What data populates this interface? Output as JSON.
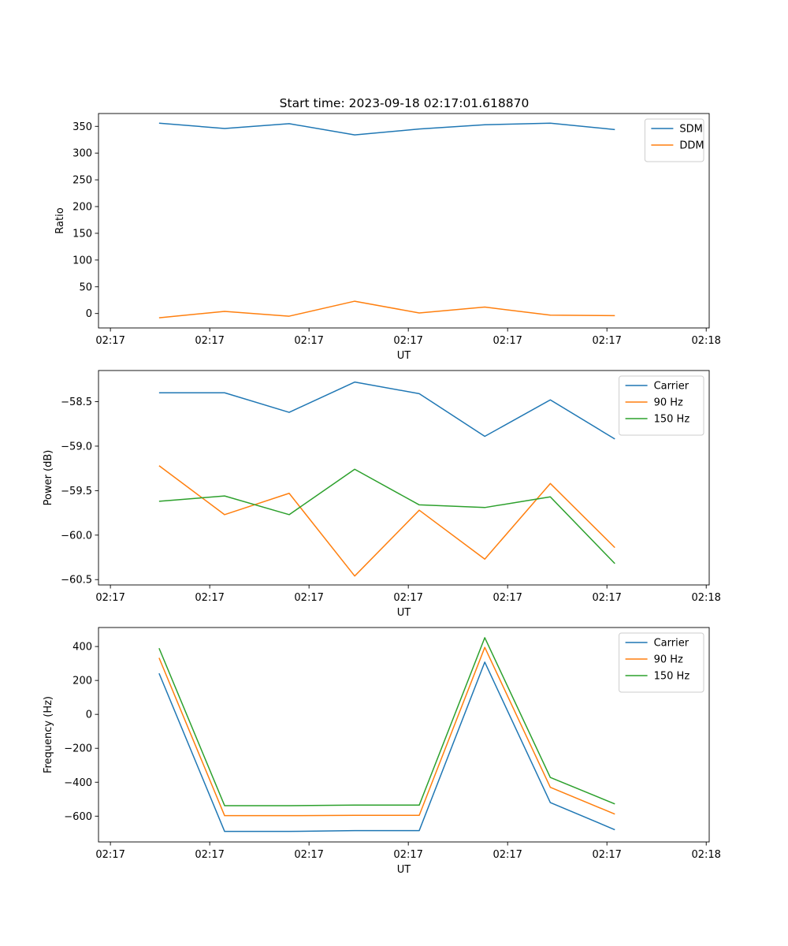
{
  "figure": {
    "title": "Start time: 2023-09-18 02:17:01.618870"
  },
  "chart_data": [
    {
      "type": "line",
      "title": "Start time: 2023-09-18 02:17:01.618870",
      "xlabel": "UT",
      "ylabel": "Ratio",
      "x_tick_labels": [
        "02:17",
        "02:17",
        "02:17",
        "02:17",
        "02:17",
        "02:17",
        "02:18"
      ],
      "x_tick_values": [
        0,
        1,
        2,
        3,
        4,
        5,
        6
      ],
      "xlim": [
        -0.12,
        6.03
      ],
      "x": [
        0.49,
        1.15,
        1.8,
        2.46,
        3.11,
        3.77,
        4.43,
        5.08
      ],
      "y_ticks": [
        0,
        50,
        100,
        150,
        200,
        250,
        300,
        350
      ],
      "ylim": [
        -27,
        374
      ],
      "legend_position": "upper right",
      "series": [
        {
          "name": "SDM",
          "color": "#1f77b4",
          "values": [
            356,
            346,
            355,
            334,
            345,
            353,
            356,
            344
          ]
        },
        {
          "name": "DDM",
          "color": "#ff7f0e",
          "values": [
            -8,
            4,
            -5,
            23,
            1,
            12,
            -3,
            -4
          ]
        }
      ]
    },
    {
      "type": "line",
      "xlabel": "UT",
      "ylabel": "Power (dB)",
      "x_tick_labels": [
        "02:17",
        "02:17",
        "02:17",
        "02:17",
        "02:17",
        "02:17",
        "02:18"
      ],
      "x_tick_values": [
        0,
        1,
        2,
        3,
        4,
        5,
        6
      ],
      "xlim": [
        -0.12,
        6.03
      ],
      "x": [
        0.49,
        1.15,
        1.8,
        2.46,
        3.11,
        3.77,
        4.43,
        5.08
      ],
      "y_ticks": [
        -60.5,
        -60.0,
        -59.5,
        -59.0,
        -58.5
      ],
      "y_tick_labels": [
        "−60.5",
        "−60.0",
        "−59.5",
        "−59.0",
        "−58.5"
      ],
      "ylim": [
        -60.56,
        -58.15
      ],
      "legend_position": "upper right",
      "series": [
        {
          "name": "Carrier",
          "color": "#1f77b4",
          "values": [
            -58.4,
            -58.4,
            -58.62,
            -58.28,
            -58.41,
            -58.89,
            -58.48,
            -58.92
          ]
        },
        {
          "name": "90 Hz",
          "color": "#ff7f0e",
          "values": [
            -59.22,
            -59.77,
            -59.53,
            -60.46,
            -59.72,
            -60.27,
            -59.42,
            -60.14
          ]
        },
        {
          "name": "150 Hz",
          "color": "#2ca02c",
          "values": [
            -59.62,
            -59.56,
            -59.77,
            -59.26,
            -59.66,
            -59.69,
            -59.57,
            -60.32
          ]
        }
      ]
    },
    {
      "type": "line",
      "xlabel": "UT",
      "ylabel": "Frequency (Hz)",
      "x_tick_labels": [
        "02:17",
        "02:17",
        "02:17",
        "02:17",
        "02:17",
        "02:17",
        "02:18"
      ],
      "x_tick_values": [
        0,
        1,
        2,
        3,
        4,
        5,
        6
      ],
      "xlim": [
        -0.12,
        6.03
      ],
      "x": [
        0.49,
        1.15,
        1.8,
        2.46,
        3.11,
        3.77,
        4.43,
        5.08
      ],
      "y_ticks": [
        -600,
        -400,
        -200,
        0,
        200,
        400
      ],
      "y_tick_labels": [
        "−600",
        "−400",
        "−200",
        "0",
        "200",
        "400"
      ],
      "ylim": [
        -752,
        512
      ],
      "legend_position": "upper right",
      "series": [
        {
          "name": "Carrier",
          "color": "#1f77b4",
          "values": [
            242,
            -690,
            -690,
            -685,
            -685,
            308,
            -520,
            -680
          ]
        },
        {
          "name": "90 Hz",
          "color": "#ff7f0e",
          "values": [
            333,
            -597,
            -597,
            -595,
            -595,
            395,
            -430,
            -588
          ]
        },
        {
          "name": "150 Hz",
          "color": "#2ca02c",
          "values": [
            390,
            -538,
            -538,
            -535,
            -535,
            452,
            -372,
            -528
          ]
        }
      ]
    }
  ]
}
